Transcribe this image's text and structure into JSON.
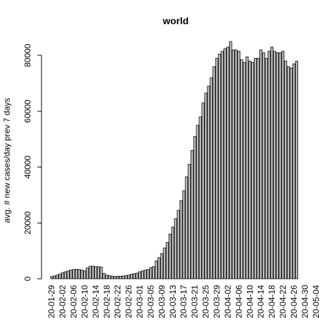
{
  "colors": {
    "background": "#ffffff",
    "bar_fill": "#bebebe",
    "bar_stroke": "#000000",
    "axis": "#000000"
  },
  "chart_data": {
    "type": "bar",
    "title": "world",
    "xlabel": "",
    "ylabel": "avg. # new cases/day prev  7  days",
    "ylim": [
      0,
      85000
    ],
    "y_ticks": [
      0,
      20000,
      40000,
      60000,
      80000
    ],
    "y_tick_labels": [
      "0",
      "20000",
      "40000",
      "60000",
      "80000"
    ],
    "grid": false,
    "legend": "none",
    "x_tick_labels": [
      "20-01-29",
      "20-02-02",
      "20-02-06",
      "20-02-10",
      "20-02-14",
      "20-02-18",
      "20-02-22",
      "20-02-26",
      "20-03-01",
      "20-03-05",
      "20-03-09",
      "20-03-13",
      "20-03-17",
      "20-03-21",
      "20-03-25",
      "20-03-29",
      "20-04-02",
      "20-04-06",
      "20-04-10",
      "20-04-14",
      "20-04-18",
      "20-04-22",
      "20-04-26",
      "20-04-30",
      "20-05-04"
    ],
    "x_tick_every": 4,
    "first_date": "20-01-29",
    "values": [
      800,
      1000,
      1300,
      1700,
      2200,
      2500,
      2800,
      3100,
      3300,
      3400,
      3300,
      3100,
      2800,
      3900,
      4500,
      4500,
      4300,
      4300,
      4200,
      1900,
      1300,
      1100,
      900,
      800,
      900,
      900,
      1000,
      1100,
      1300,
      1600,
      1800,
      2000,
      2500,
      2800,
      3100,
      3300,
      4000,
      4300,
      6400,
      7500,
      9000,
      11000,
      13000,
      16000,
      18500,
      21500,
      24500,
      28000,
      31500,
      36500,
      41000,
      46000,
      51000,
      55000,
      58000,
      63000,
      66500,
      69000,
      72000,
      76000,
      79000,
      80500,
      81500,
      82500,
      83000,
      85000,
      82000,
      82000,
      81500,
      78500,
      77500,
      79500,
      78000,
      77500,
      79000,
      79000,
      82000,
      81000,
      79000,
      81500,
      83000,
      81500,
      81000,
      81000,
      81500,
      78000,
      76000,
      75500,
      77000,
      78000
    ]
  }
}
